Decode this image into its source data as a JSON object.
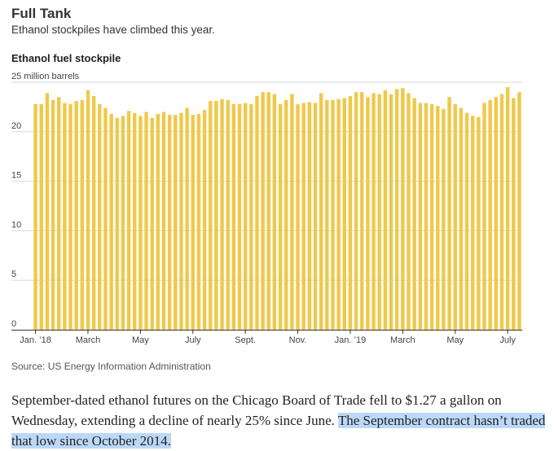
{
  "header": {
    "title": "Full Tank",
    "subtitle": "Ethanol stockpiles have climbed this year."
  },
  "source": "Source: US Energy Information Administration",
  "article": {
    "text_plain": "September-dated ethanol futures on the Chicago Board of Trade fell to $1.27 a gallon on Wednesday, extending a decline of nearly 25% since June. ",
    "text_highlighted": "The September contract hasn’t traded that low since October 2014."
  },
  "colors": {
    "bar": "#efc94c",
    "grid": "#d9d9d9",
    "axis": "#333333",
    "highlight": "#bcd8f7"
  },
  "chart_data": {
    "type": "bar",
    "title": "Ethanol fuel stockpile",
    "ylabel": "25 million barrels",
    "ylim": [
      0,
      25
    ],
    "yticks": [
      {
        "value": 0,
        "label": "0"
      },
      {
        "value": 5,
        "label": "5"
      },
      {
        "value": 10,
        "label": "10"
      },
      {
        "value": 15,
        "label": "15"
      },
      {
        "value": 20,
        "label": "20"
      },
      {
        "value": 25,
        "label": "25 million barrels"
      }
    ],
    "xticks": [
      {
        "index": 0,
        "label": "Jan. ’18"
      },
      {
        "index": 9,
        "label": "March"
      },
      {
        "index": 18,
        "label": "May"
      },
      {
        "index": 27,
        "label": "July"
      },
      {
        "index": 36,
        "label": "Sept."
      },
      {
        "index": 45,
        "label": "Nov."
      },
      {
        "index": 54,
        "label": "Jan. ’19"
      },
      {
        "index": 63,
        "label": "March"
      },
      {
        "index": 72,
        "label": "May"
      },
      {
        "index": 81,
        "label": "July"
      }
    ],
    "grid": true,
    "values": [
      22.8,
      22.8,
      23.9,
      23.2,
      23.5,
      22.9,
      22.8,
      23.1,
      23.2,
      24.2,
      23.6,
      22.8,
      22.4,
      21.8,
      21.4,
      21.6,
      22.1,
      21.9,
      21.6,
      22.0,
      21.4,
      21.8,
      22.0,
      21.7,
      21.7,
      21.9,
      22.4,
      21.7,
      21.8,
      22.2,
      23.1,
      23.1,
      23.3,
      23.2,
      22.8,
      22.8,
      22.9,
      22.8,
      23.6,
      24.0,
      24.0,
      23.8,
      22.8,
      23.2,
      23.8,
      22.8,
      22.9,
      23.0,
      22.9,
      23.9,
      23.2,
      23.2,
      23.3,
      23.4,
      23.6,
      24.0,
      24.0,
      23.5,
      23.9,
      23.8,
      24.2,
      23.8,
      24.3,
      24.4,
      23.9,
      23.4,
      22.9,
      22.9,
      22.8,
      22.6,
      22.3,
      23.5,
      22.8,
      22.4,
      21.9,
      21.6,
      21.5,
      22.9,
      23.2,
      23.5,
      23.8,
      24.5,
      23.4,
      24.0
    ]
  }
}
